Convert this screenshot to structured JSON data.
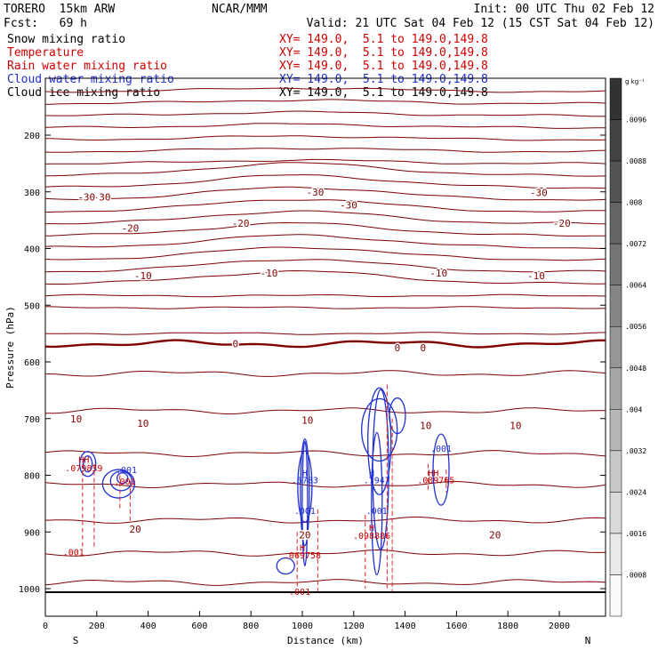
{
  "header": {
    "model": "TORERO  15km ARW",
    "center": "NCAR/MMM",
    "init": "Init: 00 UTC Thu 02 Feb 12",
    "fcst": "Fcst:   69 h",
    "valid": "Valid: 21 UTC Sat 04 Feb 12 (15 CST Sat 04 Feb 12)"
  },
  "fields": [
    {
      "name": "Snow mixing ratio",
      "xy": "",
      "color": "#000000"
    },
    {
      "name": "Temperature",
      "xy": "XY= 149.0,  5.1 to 149.0,149.8",
      "color": "#cc0000"
    },
    {
      "name": "Rain water mixing ratio",
      "xy": "XY= 149.0,  5.1 to 149.0,149.8",
      "color": "#cc0000"
    },
    {
      "name": "Cloud water mixing ratio",
      "xy": "XY= 149.0,  5.1 to 149.0,149.8",
      "color": "#0000cc"
    },
    {
      "name": "Cloud ice mixing ratio",
      "xy": "XY= 149.0,  5.1 to 149.0,149.8",
      "color": "#000000"
    }
  ],
  "first_xy": "XY= 149.0,  5.1 to 149.0,149.8",
  "colors": {
    "temperature": "#800000",
    "rain": "#dd2222",
    "cloud_water": "#1f2fd0",
    "ice": "#000000",
    "text_red": "#cc0000",
    "text_blue": "#1f2fd0"
  },
  "chart_data": {
    "type": "contour cross-section",
    "xlabel": "Distance (km)",
    "ylabel": "Pressure (hPa)",
    "x_ticks": [
      0,
      200,
      400,
      600,
      800,
      1000,
      1200,
      1400,
      1600,
      1800,
      2000
    ],
    "x_range": [
      0,
      2180
    ],
    "y_ticks": [
      200,
      300,
      400,
      500,
      600,
      700,
      800,
      900,
      1000
    ],
    "y_range": [
      1025,
      100
    ],
    "x_end_labels": {
      "left": "S",
      "right": "N"
    },
    "colorbar": {
      "unit": "g kg⁻¹",
      "labels": [
        ".0096",
        ".0088",
        ".008",
        ".0072",
        ".0064",
        ".0056",
        ".0048",
        ".004",
        ".0032",
        ".0024",
        ".0016",
        ".0008"
      ]
    },
    "temperature_contour_labels": [
      {
        "x": 120,
        "p": 700,
        "label": "10"
      },
      {
        "x": 380,
        "p": 708,
        "label": "10"
      },
      {
        "x": 1180,
        "p": 323,
        "label": "-30"
      },
      {
        "x": 220,
        "p": 309,
        "label": "-30"
      },
      {
        "x": 160,
        "p": 309,
        "label": "-30"
      },
      {
        "x": 330,
        "p": 364,
        "label": "-20"
      },
      {
        "x": 760,
        "p": 355,
        "label": "-20"
      },
      {
        "x": 2010,
        "p": 355,
        "label": "-20"
      },
      {
        "x": 1920,
        "p": 301,
        "label": "-30"
      },
      {
        "x": 1050,
        "p": 300,
        "label": "-30"
      },
      {
        "x": 380,
        "p": 448,
        "label": "-10"
      },
      {
        "x": 870,
        "p": 443,
        "label": "-10"
      },
      {
        "x": 1530,
        "p": 443,
        "label": "-10"
      },
      {
        "x": 1910,
        "p": 448,
        "label": "-10"
      },
      {
        "x": 1020,
        "p": 703,
        "label": "10"
      },
      {
        "x": 1480,
        "p": 712,
        "label": "10"
      },
      {
        "x": 1830,
        "p": 712,
        "label": "10"
      },
      {
        "x": 740,
        "p": 568,
        "label": "0"
      },
      {
        "x": 1470,
        "p": 575,
        "label": "0"
      },
      {
        "x": 1370,
        "p": 575,
        "label": "0"
      },
      {
        "x": 350,
        "p": 895,
        "label": "20"
      },
      {
        "x": 1010,
        "p": 905,
        "label": "20"
      },
      {
        "x": 1750,
        "p": 905,
        "label": "20"
      }
    ],
    "point_labels": [
      {
        "x": 150,
        "p": 772,
        "text": "HH",
        "color": "red"
      },
      {
        "x": 150,
        "p": 787,
        "text": ".079839",
        "color": "red"
      },
      {
        "x": 315,
        "p": 790,
        "text": ".001",
        "color": "blue"
      },
      {
        "x": 310,
        "p": 810,
        "text": ".001",
        "color": "red"
      },
      {
        "x": 110,
        "p": 935,
        "text": ".001",
        "color": "red"
      },
      {
        "x": 1010,
        "p": 795,
        "text": "H",
        "color": "blue"
      },
      {
        "x": 1010,
        "p": 808,
        "text": ".6783",
        "color": "blue"
      },
      {
        "x": 1010,
        "p": 862,
        "text": ".001",
        "color": "blue"
      },
      {
        "x": 1000,
        "p": 927,
        "text": "H",
        "color": "red"
      },
      {
        "x": 1000,
        "p": 940,
        "text": ".069758",
        "color": "red"
      },
      {
        "x": 990,
        "p": 1005,
        "text": ".001",
        "color": "red"
      },
      {
        "x": 1270,
        "p": 795,
        "text": "H",
        "color": "blue"
      },
      {
        "x": 1290,
        "p": 808,
        "text": ".7947",
        "color": "blue"
      },
      {
        "x": 1290,
        "p": 862,
        "text": ".001",
        "color": "blue"
      },
      {
        "x": 1270,
        "p": 892,
        "text": "H",
        "color": "red"
      },
      {
        "x": 1270,
        "p": 906,
        "text": ".098886",
        "color": "red"
      },
      {
        "x": 1540,
        "p": 752,
        "text": ".001",
        "color": "blue"
      },
      {
        "x": 1510,
        "p": 795,
        "text": "HH",
        "color": "red"
      },
      {
        "x": 1520,
        "p": 808,
        "text": ".089765",
        "color": "red"
      }
    ]
  }
}
